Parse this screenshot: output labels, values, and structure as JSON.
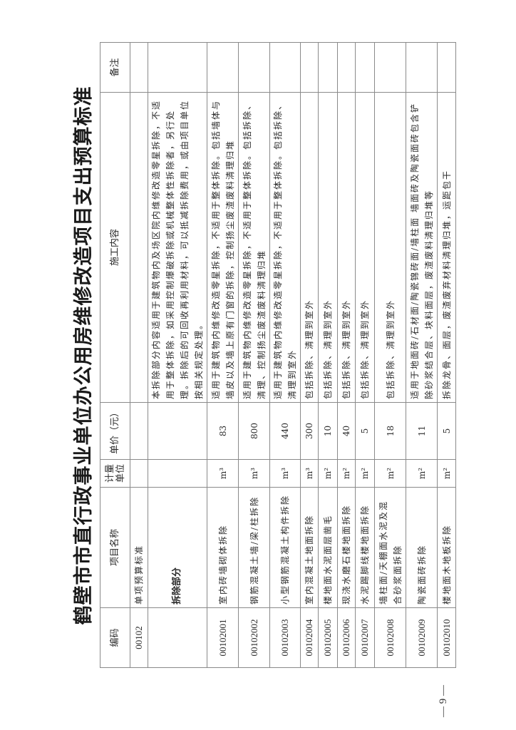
{
  "title": "鹤壁市市直行政事业单位办公用房维修改造项目支出预算标准",
  "headers": {
    "code": "编码",
    "name": "项目名称",
    "unit": "计量单位",
    "price": "单价（元）",
    "content": "施工内容",
    "remark": "备注"
  },
  "section": {
    "code": "00102",
    "name": "单项预算标准"
  },
  "category": {
    "name": "拆除部分",
    "content": "本拆除部分内容适用于建筑物内及场区院内维修改造零星拆除，不适用于整体拆除，如采用控制爆破拆除或机械整体性拆除者，另行处理。拆除后的可回收再利用材料，可以抵减拆除费用，或由项目单位按相关规定处理。"
  },
  "rows": [
    {
      "code": "00102001",
      "name": "室内砖墙砌体拆除",
      "unit": "m³",
      "price": "83",
      "content": "适用于建筑物内维修改造零星拆除，不适用于整体拆除。包括墙体与墙皮以及墙上原有门窗的拆除，控制扬尘废渣废料清理归堆",
      "remark": ""
    },
    {
      "code": "00102002",
      "name": "钢筋混凝土墙/梁/柱拆除",
      "unit": "m³",
      "price": "800",
      "content": "适用于建筑物内维修改造零星拆除，不适用于整体拆除。包括拆除、清理、控制扬尘废渣废料清理归堆",
      "remark": ""
    },
    {
      "code": "00102003",
      "name": "小型钢筋混凝土构件拆除",
      "unit": "m³",
      "price": "440",
      "content": "适用于建筑物内维修改造零星拆除，不适用于整体拆除。包括拆除、清理到室外",
      "remark": ""
    },
    {
      "code": "00102004",
      "name": "室内混凝土地面拆除",
      "unit": "m³",
      "price": "300",
      "content": "包括拆除、清理到室外",
      "remark": ""
    },
    {
      "code": "00102005",
      "name": "楼地面水泥面层凿毛",
      "unit": "m²",
      "price": "10",
      "content": "包括拆除、清理到室外",
      "remark": ""
    },
    {
      "code": "00102006",
      "name": "现浇水磨石楼地面拆除",
      "unit": "m²",
      "price": "40",
      "content": "包括拆除、清理到室外",
      "remark": ""
    },
    {
      "code": "00102007",
      "name": "水泥踢脚线楼地面拆除",
      "unit": "m²",
      "price": "5",
      "content": "包括拆除、清理到室外",
      "remark": ""
    },
    {
      "code": "00102008",
      "name": "墙柱面/天棚面水泥及混合砂浆面拆除",
      "unit": "m²",
      "price": "18",
      "content": "包括拆除、清理到室外",
      "remark": ""
    },
    {
      "code": "00102009",
      "name": "陶瓷面砖拆除",
      "unit": "m²",
      "price": "11",
      "content": "适用于地面砖/石材面/陶瓷锦砖面/墙柱面 墙面砖及陶瓷面砖包含铲除砂浆结合层、块料面层，废渣废料清理归堆等",
      "remark": ""
    },
    {
      "code": "00102010",
      "name": "楼地面木地板拆除",
      "unit": "m²",
      "price": "5",
      "content": "拆除龙骨、面层，废渣废弃材料清理归堆，运距包干",
      "remark": ""
    }
  ],
  "page_number": "— 9 —"
}
